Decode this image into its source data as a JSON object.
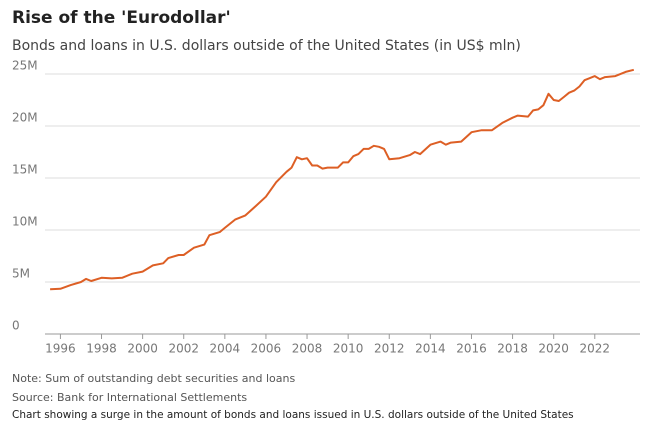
{
  "chart_data": {
    "type": "line",
    "title": "Rise of the 'Eurodollar'",
    "subtitle": "Bonds and loans in U.S. dollars outside of the United States (in US$ mln)",
    "note": "Note: Sum of outstanding debt securities and loans",
    "source": "Source: Bank for International Settlements",
    "description": "Chart showing a surge in the amount of bonds and loans issued in U.S. dollars outside of the United States",
    "color": "#dd5f25",
    "grid": true,
    "xlim": [
      1995.25,
      2024.2
    ],
    "xticks": [
      1996,
      1998,
      2000,
      2002,
      2004,
      2006,
      2008,
      2010,
      2012,
      2014,
      2016,
      2018,
      2020,
      2022
    ],
    "ylim": [
      0,
      25
    ],
    "yticks": [
      0,
      {
        "value": 5,
        "label": "5M"
      },
      {
        "value": 10,
        "label": "10M"
      },
      {
        "value": 15,
        "label": "15M"
      },
      {
        "value": 20,
        "label": "20M"
      },
      {
        "value": 25,
        "label": "25M"
      }
    ],
    "x": [
      1995.5,
      1996,
      1996.5,
      1997,
      1997.25,
      1997.5,
      1998,
      1998.5,
      1999,
      1999.5,
      2000,
      2000.5,
      2001,
      2001.25,
      2001.75,
      2002,
      2002.5,
      2003,
      2003.25,
      2003.75,
      2004,
      2004.5,
      2005,
      2005.5,
      2006,
      2006.5,
      2007,
      2007.25,
      2007.5,
      2007.75,
      2008,
      2008.25,
      2008.5,
      2008.75,
      2009,
      2009.5,
      2009.75,
      2010,
      2010.25,
      2010.5,
      2010.75,
      2011,
      2011.25,
      2011.5,
      2011.75,
      2012,
      2012.5,
      2013,
      2013.25,
      2013.5,
      2014,
      2014.5,
      2014.75,
      2015,
      2015.5,
      2016,
      2016.5,
      2017,
      2017.5,
      2018,
      2018.25,
      2018.75,
      2019,
      2019.25,
      2019.5,
      2019.75,
      2020,
      2020.25,
      2020.5,
      2020.75,
      2021,
      2021.25,
      2021.5,
      2021.75,
      2022,
      2022.25,
      2022.5,
      2023,
      2023.5,
      2023.9
    ],
    "values": [
      4.3,
      4.35,
      4.7,
      5.0,
      5.3,
      5.1,
      5.4,
      5.35,
      5.4,
      5.8,
      6.0,
      6.6,
      6.8,
      7.3,
      7.6,
      7.6,
      8.3,
      8.6,
      9.5,
      9.8,
      10.2,
      11.0,
      11.4,
      12.3,
      13.2,
      14.6,
      15.6,
      16.0,
      17.0,
      16.8,
      16.9,
      16.2,
      16.2,
      15.9,
      16.0,
      16.0,
      16.5,
      16.5,
      17.1,
      17.3,
      17.8,
      17.8,
      18.1,
      18.0,
      17.8,
      16.8,
      16.9,
      17.2,
      17.5,
      17.3,
      18.2,
      18.5,
      18.2,
      18.4,
      18.5,
      19.4,
      19.6,
      19.6,
      20.3,
      20.8,
      21.0,
      20.9,
      21.5,
      21.6,
      22.0,
      23.1,
      22.5,
      22.4,
      22.8,
      23.2,
      23.4,
      23.8,
      24.4,
      24.6,
      24.8,
      24.5,
      24.7,
      24.8,
      25.2,
      25.4
    ]
  }
}
